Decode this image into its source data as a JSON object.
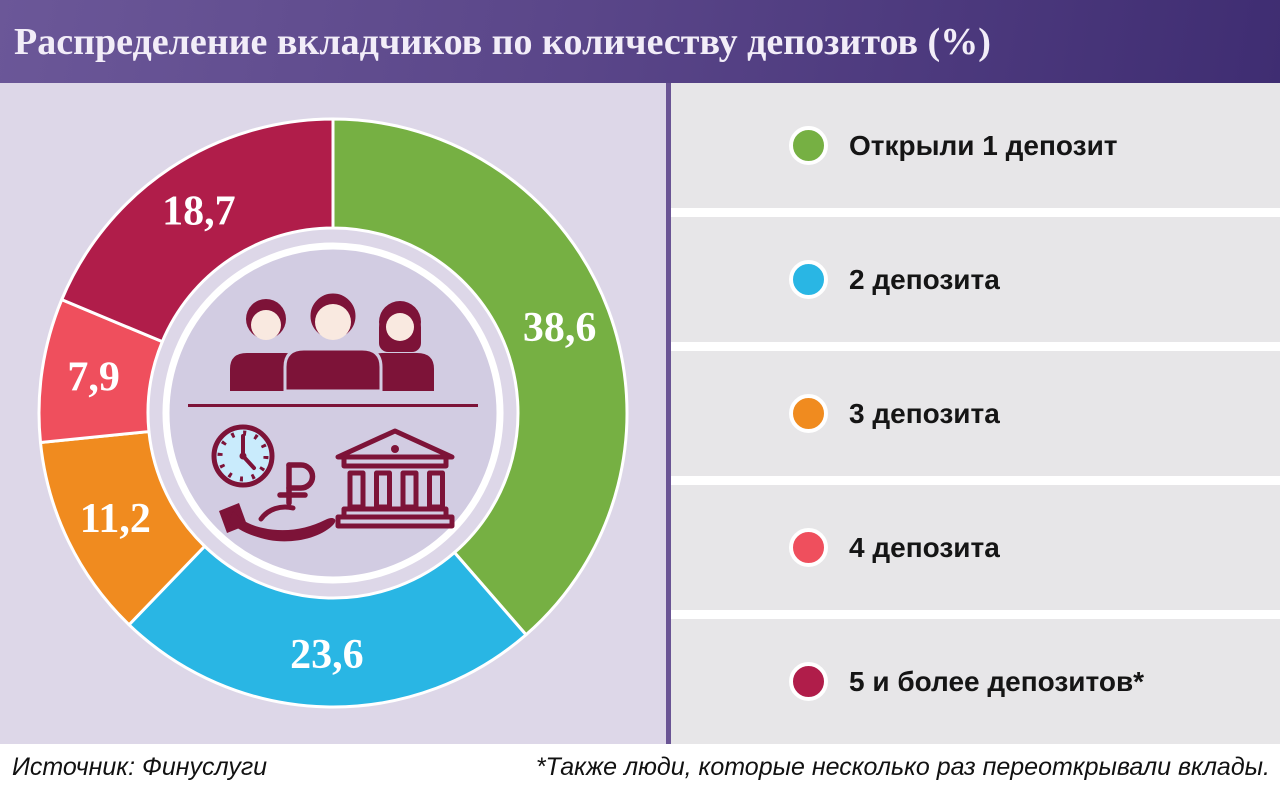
{
  "title": "Распределение вкладчиков по количеству депозитов (%)",
  "chart_data": {
    "type": "pie",
    "subtype": "donut",
    "title": "Распределение вкладчиков по количеству депозитов (%)",
    "unit": "%",
    "start_angle_deg": 0,
    "direction": "clockwise",
    "legend_position": "right",
    "segments": [
      {
        "label": "Открыли 1 депозит",
        "value": 38.6,
        "display": "38,6",
        "color": "#76b043"
      },
      {
        "label": "2 депозита",
        "value": 23.6,
        "display": "23,6",
        "color": "#29b6e4"
      },
      {
        "label": "3 депозита",
        "value": 11.2,
        "display": "11,2",
        "color": "#f08b1f"
      },
      {
        "label": "4 депозита",
        "value": 7.9,
        "display": "7,9",
        "color": "#ef4f5d"
      },
      {
        "label": "5 и более депозитов*",
        "value": 18.7,
        "display": "18,7",
        "color": "#b01d4a"
      }
    ]
  },
  "center_icons": [
    "people-group-icon",
    "clock-icon",
    "ruble-icon",
    "giving-hand-icon",
    "bank-icon"
  ],
  "footer": {
    "source": "Источник: Финуслуги",
    "footnote": "*Также люди, которые несколько раз переоткрывали вклады."
  },
  "colors": {
    "title_bg_left": "#6b5798",
    "title_bg_right": "#3f2d72",
    "title_text": "#f2edf8",
    "chart_panel_bg": "#ddd7e8",
    "inner_circle_bg": "#d2cce2",
    "panel_divider": "#6a5494",
    "legend_row_bg": "#e7e6e8",
    "legend_text": "#151515",
    "icon_maroon": "#7d1338",
    "clock_face": "#c9ebfc",
    "skin": "#f9e9e0",
    "segment_border": "#ffffff"
  }
}
